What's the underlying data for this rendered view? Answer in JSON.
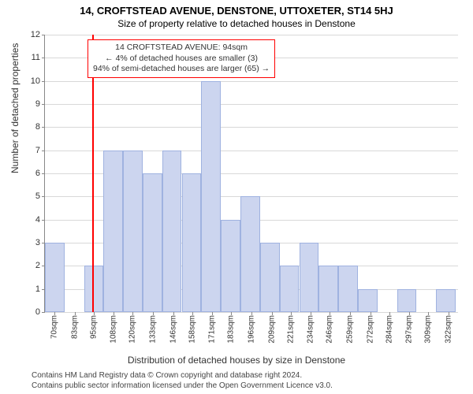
{
  "title": "14, CROFTSTEAD AVENUE, DENSTONE, UTTOXETER, ST14 5HJ",
  "subtitle": "Size of property relative to detached houses in Denstone",
  "ylabel": "Number of detached properties",
  "xlabel": "Distribution of detached houses by size in Denstone",
  "attribution_line1": "Contains HM Land Registry data © Crown copyright and database right 2024.",
  "attribution_line2": "Contains public sector information licensed under the Open Government Licence v3.0.",
  "chart": {
    "type": "histogram",
    "background_color": "#ffffff",
    "grid_color": "#d8d8d8",
    "axis_color": "#888888",
    "bar_fill": "#ccd5ef",
    "bar_stroke": "#9fb2e0",
    "marker_color": "#ff0000",
    "ylim": [
      0,
      12
    ],
    "ytick_step": 1,
    "yticks": [
      0,
      1,
      2,
      3,
      4,
      5,
      6,
      7,
      8,
      9,
      10,
      11,
      12
    ],
    "x_min": 64,
    "x_max": 328,
    "x_bin_width": 12.4,
    "xticks": [
      {
        "pos": 70,
        "label": "70sqm"
      },
      {
        "pos": 83,
        "label": "83sqm"
      },
      {
        "pos": 95,
        "label": "95sqm"
      },
      {
        "pos": 108,
        "label": "108sqm"
      },
      {
        "pos": 120,
        "label": "120sqm"
      },
      {
        "pos": 133,
        "label": "133sqm"
      },
      {
        "pos": 146,
        "label": "146sqm"
      },
      {
        "pos": 158,
        "label": "158sqm"
      },
      {
        "pos": 171,
        "label": "171sqm"
      },
      {
        "pos": 183,
        "label": "183sqm"
      },
      {
        "pos": 196,
        "label": "196sqm"
      },
      {
        "pos": 209,
        "label": "209sqm"
      },
      {
        "pos": 221,
        "label": "221sqm"
      },
      {
        "pos": 234,
        "label": "234sqm"
      },
      {
        "pos": 246,
        "label": "246sqm"
      },
      {
        "pos": 259,
        "label": "259sqm"
      },
      {
        "pos": 272,
        "label": "272sqm"
      },
      {
        "pos": 284,
        "label": "284sqm"
      },
      {
        "pos": 297,
        "label": "297sqm"
      },
      {
        "pos": 309,
        "label": "309sqm"
      },
      {
        "pos": 322,
        "label": "322sqm"
      }
    ],
    "bars": [
      {
        "x": 64,
        "h": 3
      },
      {
        "x": 76.5,
        "h": 0
      },
      {
        "x": 89,
        "h": 2
      },
      {
        "x": 101.5,
        "h": 7
      },
      {
        "x": 114,
        "h": 7
      },
      {
        "x": 126.5,
        "h": 6
      },
      {
        "x": 139,
        "h": 7
      },
      {
        "x": 151.5,
        "h": 6
      },
      {
        "x": 164,
        "h": 10
      },
      {
        "x": 176.5,
        "h": 4
      },
      {
        "x": 189,
        "h": 5
      },
      {
        "x": 201.5,
        "h": 3
      },
      {
        "x": 214,
        "h": 2
      },
      {
        "x": 226.5,
        "h": 3
      },
      {
        "x": 239,
        "h": 2
      },
      {
        "x": 251.5,
        "h": 2
      },
      {
        "x": 264,
        "h": 1
      },
      {
        "x": 276.5,
        "h": 0
      },
      {
        "x": 289,
        "h": 1
      },
      {
        "x": 301.5,
        "h": 0
      },
      {
        "x": 314,
        "h": 1
      }
    ],
    "marker_value": 94,
    "annotation": {
      "line1": "14 CROFTSTEAD AVENUE: 94sqm",
      "line2": "← 4% of detached houses are smaller (3)",
      "line3": "94% of semi-detached houses are larger (65) →",
      "border_color": "#ff0000",
      "text_color": "#333333"
    }
  }
}
